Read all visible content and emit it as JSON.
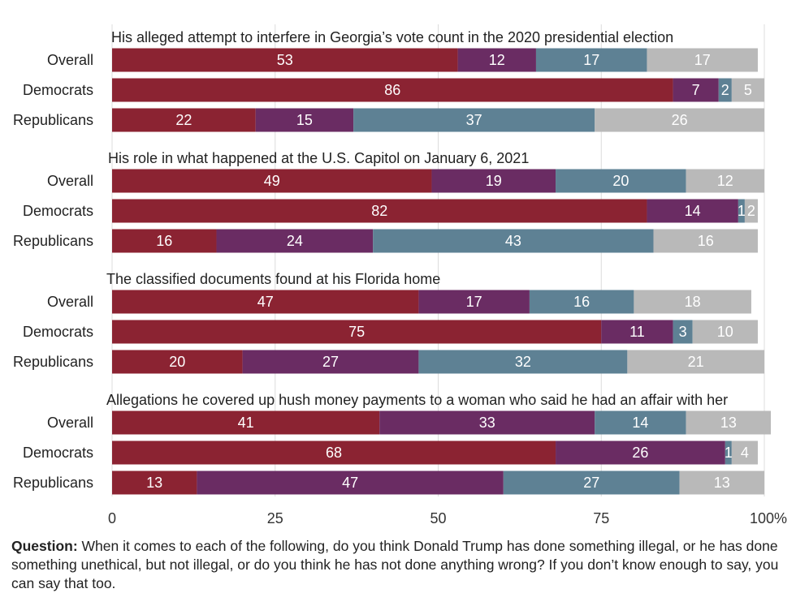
{
  "chart_data": {
    "type": "bar",
    "orientation": "horizontal",
    "stacked": true,
    "xlim": [
      0,
      100
    ],
    "xticks": [
      "0",
      "25",
      "50",
      "75",
      "100%"
    ],
    "grid": true,
    "segment_colors": [
      "#8b2332",
      "#6a2c63",
      "#5e8194",
      "#b9b9b9"
    ],
    "panels": [
      {
        "title": "His alleged attempt to interfere in Georgia’s vote count in the 2020 presidential election",
        "rows": [
          {
            "label": "Overall",
            "values": [
              53,
              12,
              17,
              17
            ]
          },
          {
            "label": "Democrats",
            "values": [
              86,
              7,
              2,
              5
            ]
          },
          {
            "label": "Republicans",
            "values": [
              22,
              15,
              37,
              26
            ]
          }
        ]
      },
      {
        "title": "His role in what happened at the U.S. Capitol on January 6, 2021",
        "rows": [
          {
            "label": "Overall",
            "values": [
              49,
              19,
              20,
              12
            ]
          },
          {
            "label": "Democrats",
            "values": [
              82,
              14,
              1,
              2
            ]
          },
          {
            "label": "Republicans",
            "values": [
              16,
              24,
              43,
              16
            ]
          }
        ]
      },
      {
        "title": "The classified documents found at his Florida home",
        "rows": [
          {
            "label": "Overall",
            "values": [
              47,
              17,
              16,
              18
            ]
          },
          {
            "label": "Democrats",
            "values": [
              75,
              11,
              3,
              10
            ]
          },
          {
            "label": "Republicans",
            "values": [
              20,
              27,
              32,
              21
            ]
          }
        ]
      },
      {
        "title": "Allegations he covered up hush money payments to a woman who said he had an affair with her",
        "rows": [
          {
            "label": "Overall",
            "values": [
              41,
              33,
              14,
              13
            ]
          },
          {
            "label": "Democrats",
            "values": [
              68,
              26,
              1,
              4
            ]
          },
          {
            "label": "Republicans",
            "values": [
              13,
              47,
              27,
              13
            ]
          }
        ]
      }
    ]
  },
  "footnote": {
    "label": "Question:",
    "text": " When it comes to each of the following, do you think Donald Trump has done something illegal, or he has done something unethical, but not illegal, or do you think he has not done anything wrong? If you don’t know enough to say, you can say that too."
  }
}
